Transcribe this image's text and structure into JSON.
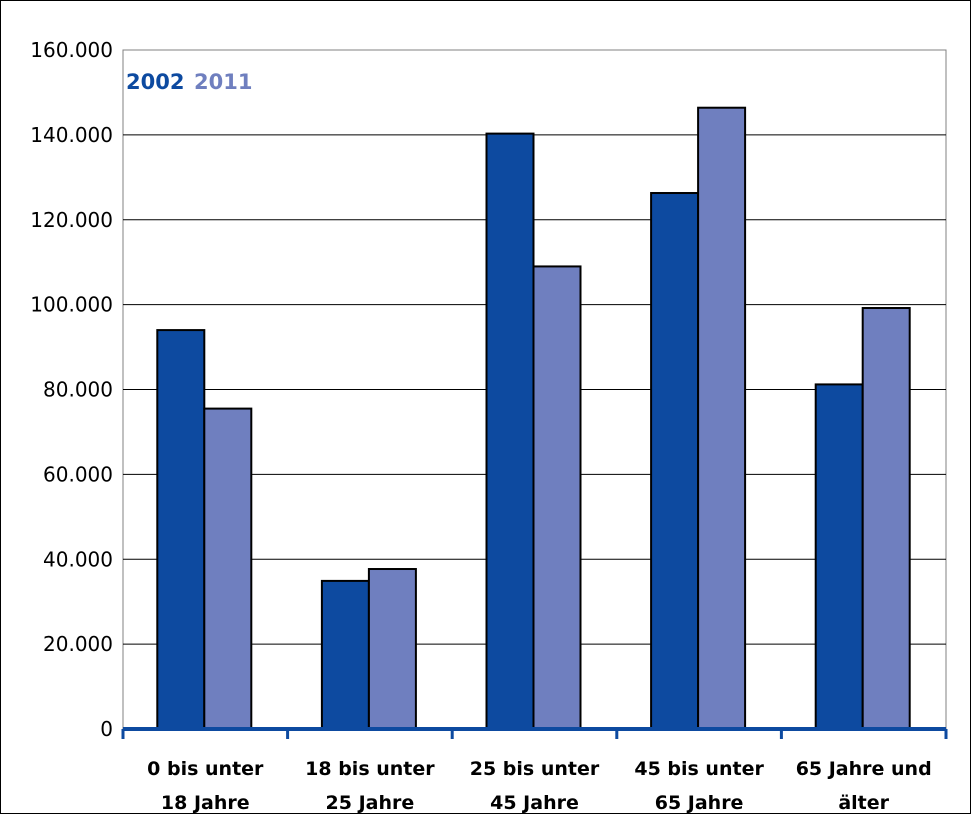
{
  "chart_data": {
    "type": "bar",
    "title": "",
    "xlabel": "",
    "ylabel": "",
    "categories": [
      [
        "0 bis unter",
        "18 Jahre"
      ],
      [
        "18 bis unter",
        "25 Jahre"
      ],
      [
        "25 bis unter",
        "45 Jahre"
      ],
      [
        "45 bis unter",
        "65 Jahre"
      ],
      [
        "65 Jahre und",
        "älter"
      ]
    ],
    "series": [
      {
        "name": "2002",
        "color": "#0d4aa0",
        "values": [
          94000,
          34900,
          140300,
          126300,
          81200
        ]
      },
      {
        "name": "2011",
        "color": "#6f7fbf",
        "values": [
          75500,
          37700,
          109000,
          146400,
          99200
        ]
      }
    ],
    "ylim": [
      0,
      160000
    ],
    "yticks": [
      "0",
      "20.000",
      "40.000",
      "60.000",
      "80.000",
      "100.000",
      "120.000",
      "140.000",
      "160.000"
    ],
    "ytick_values": [
      0,
      20000,
      40000,
      60000,
      80000,
      100000,
      120000,
      140000,
      160000
    ],
    "grid": true,
    "legend_position": "top-left",
    "axis_color": "#0d4aa0"
  }
}
